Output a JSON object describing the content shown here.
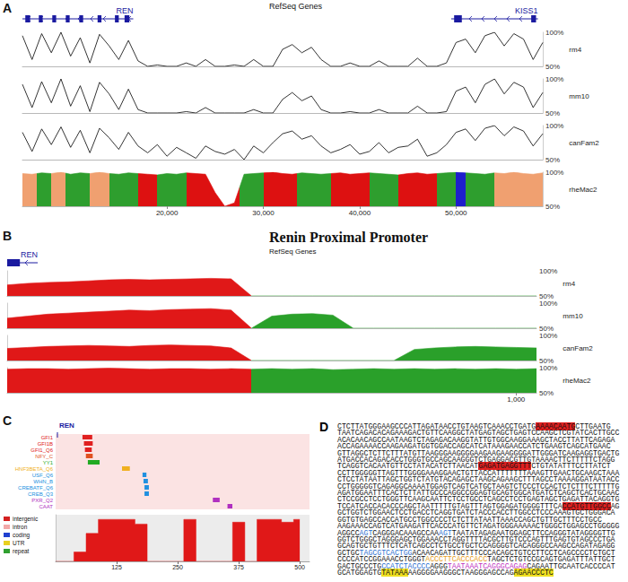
{
  "chart_data": [
    {
      "label": "A",
      "type": "line",
      "header": "RefSeq Genes",
      "genes": [
        {
          "name": "REN",
          "from": 5000,
          "to": 16500,
          "exons": [
            [
              5300,
              5800
            ],
            [
              6700,
              7100
            ],
            [
              8100,
              8500
            ],
            [
              9500,
              9900
            ],
            [
              10900,
              11300
            ],
            [
              12800,
              13200
            ],
            [
              14600,
              15000
            ],
            [
              15600,
              16100
            ]
          ]
        },
        {
          "name": "KISS1",
          "from": 49500,
          "to": 58500,
          "exons": [
            [
              49800,
              50600
            ],
            [
              57800,
              58300
            ]
          ]
        }
      ],
      "x": [
        5000,
        6000,
        7000,
        8000,
        9000,
        10000,
        11000,
        12000,
        13000,
        14000,
        15000,
        16000,
        17000,
        18000,
        19000,
        20000,
        21000,
        22000,
        23000,
        24000,
        25000,
        26000,
        27000,
        28000,
        29000,
        30000,
        31000,
        32000,
        33000,
        34000,
        35000,
        36000,
        37000,
        38000,
        39000,
        40000,
        41000,
        42000,
        43000,
        44000,
        45000,
        46000,
        47000,
        48000,
        49000,
        50000,
        51000,
        52000,
        53000,
        54000,
        55000,
        56000,
        57000,
        58000,
        59000
      ],
      "xlim": [
        5000,
        59000
      ],
      "xticks": [
        {
          "value": 20000,
          "label": "20,000"
        },
        {
          "value": 30000,
          "label": "30,000"
        },
        {
          "value": 40000,
          "label": "40,000"
        },
        {
          "value": 50000,
          "label": "50,000"
        }
      ],
      "ylim": [
        50,
        100
      ],
      "yticks": [
        {
          "value": 50,
          "label": "50%"
        },
        {
          "value": 100,
          "label": "100%"
        }
      ],
      "regions": [
        {
          "from": 5000,
          "to": 6500,
          "color": "#f0a070"
        },
        {
          "from": 6500,
          "to": 8000,
          "color": "#2e9e2e"
        },
        {
          "from": 8000,
          "to": 9500,
          "color": "#f0a070"
        },
        {
          "from": 9500,
          "to": 12000,
          "color": "#2e9e2e"
        },
        {
          "from": 12000,
          "to": 14000,
          "color": "#f0a070"
        },
        {
          "from": 14000,
          "to": 17000,
          "color": "#2e9e2e"
        },
        {
          "from": 17000,
          "to": 19000,
          "color": "#dd1111"
        },
        {
          "from": 19000,
          "to": 22000,
          "color": "#2e9e2e"
        },
        {
          "from": 22000,
          "to": 27500,
          "color": "#dd1111"
        },
        {
          "from": 27500,
          "to": 30000,
          "color": "#2e9e2e"
        },
        {
          "from": 30000,
          "to": 33500,
          "color": "#dd1111"
        },
        {
          "from": 33500,
          "to": 37000,
          "color": "#2e9e2e"
        },
        {
          "from": 37000,
          "to": 41000,
          "color": "#dd1111"
        },
        {
          "from": 41000,
          "to": 44000,
          "color": "#2e9e2e"
        },
        {
          "from": 44000,
          "to": 48000,
          "color": "#dd1111"
        },
        {
          "from": 48000,
          "to": 50000,
          "color": "#2e9e2e"
        },
        {
          "from": 50000,
          "to": 51000,
          "color": "#1e1ecc"
        },
        {
          "from": 51000,
          "to": 54000,
          "color": "#2e9e2e"
        },
        {
          "from": 54000,
          "to": 59000,
          "color": "#f0a070"
        }
      ],
      "series": [
        {
          "name": "rm4",
          "type": "line",
          "color": "#000000",
          "values": [
            95,
            60,
            98,
            70,
            100,
            65,
            92,
            55,
            97,
            80,
            60,
            88,
            58,
            50,
            52,
            50,
            50,
            55,
            50,
            60,
            50,
            50,
            52,
            50,
            60,
            50,
            50,
            75,
            82,
            70,
            78,
            60,
            50,
            50,
            55,
            50,
            50,
            58,
            50,
            50,
            50,
            62,
            50,
            50,
            55,
            85,
            90,
            70,
            95,
            100,
            80,
            98,
            90,
            60,
            85
          ]
        },
        {
          "name": "mm10",
          "type": "line",
          "color": "#000000",
          "values": [
            92,
            58,
            96,
            65,
            100,
            60,
            90,
            52,
            95,
            78,
            55,
            85,
            55,
            50,
            50,
            50,
            50,
            52,
            50,
            58,
            50,
            50,
            50,
            50,
            55,
            50,
            50,
            70,
            80,
            68,
            75,
            55,
            50,
            50,
            52,
            50,
            50,
            55,
            50,
            50,
            50,
            60,
            50,
            50,
            52,
            82,
            88,
            65,
            92,
            100,
            78,
            95,
            88,
            58,
            80
          ]
        },
        {
          "name": "canFam2",
          "type": "line",
          "color": "#000000",
          "values": [
            90,
            62,
            95,
            72,
            98,
            68,
            93,
            60,
            96,
            82,
            65,
            90,
            70,
            60,
            72,
            55,
            68,
            60,
            52,
            70,
            62,
            58,
            65,
            50,
            70,
            60,
            75,
            88,
            92,
            80,
            85,
            70,
            60,
            65,
            72,
            58,
            62,
            75,
            60,
            68,
            70,
            80,
            55,
            60,
            72,
            90,
            95,
            78,
            96,
            100,
            85,
            98,
            92,
            70,
            88
          ]
        },
        {
          "name": "rheMac2",
          "type": "area",
          "values": [
            98,
            97,
            99,
            98,
            100,
            97,
            99,
            98,
            100,
            98,
            97,
            99,
            98,
            97,
            96,
            98,
            97,
            99,
            98,
            97,
            70,
            50,
            55,
            97,
            98,
            99,
            100,
            98,
            97,
            99,
            98,
            97,
            98,
            99,
            97,
            98,
            99,
            98,
            97,
            96,
            98,
            99,
            97,
            98,
            99,
            100,
            99,
            98,
            97,
            99,
            98,
            100,
            98,
            97,
            99
          ]
        }
      ]
    },
    {
      "label": "B",
      "type": "line",
      "title": "Renin Proximal Promoter",
      "header": "RefSeq Genes",
      "genes": [
        {
          "name": "REN",
          "from": 0,
          "to": 60,
          "exons": [
            [
              0,
              25
            ]
          ]
        }
      ],
      "x": [
        0,
        40,
        80,
        120,
        160,
        200,
        240,
        280,
        320,
        360,
        400,
        440,
        480,
        520,
        560,
        600,
        640,
        680,
        720,
        760,
        800,
        840,
        880,
        920,
        960,
        1000,
        1040
      ],
      "xlim": [
        0,
        1040
      ],
      "xticks": [
        {
          "value": 1000,
          "label": "1,000"
        }
      ],
      "ylim": [
        50,
        100
      ],
      "yticks": [
        {
          "value": 50,
          "label": "50%"
        },
        {
          "value": 100,
          "label": "100%"
        }
      ],
      "regions": [
        {
          "from": 0,
          "to": 480,
          "color": "#e01818"
        },
        {
          "from": 480,
          "to": 1040,
          "color": "#2aa02a"
        }
      ],
      "series": [
        {
          "name": "rm4",
          "type": "area",
          "values": [
            72,
            75,
            77,
            78,
            80,
            82,
            83,
            82,
            83,
            84,
            85,
            84,
            50,
            50,
            50,
            50,
            50,
            50,
            50,
            50,
            50,
            50,
            50,
            50,
            50,
            50,
            50
          ]
        },
        {
          "name": "mm10",
          "type": "area",
          "values": [
            70,
            74,
            78,
            80,
            82,
            84,
            86,
            85,
            87,
            88,
            89,
            86,
            50,
            74,
            78,
            79,
            76,
            50,
            50,
            50,
            50,
            50,
            50,
            50,
            50,
            50,
            50
          ]
        },
        {
          "name": "canFam2",
          "type": "area",
          "values": [
            74,
            76,
            78,
            79,
            80,
            79,
            78,
            80,
            81,
            80,
            79,
            75,
            50,
            50,
            50,
            50,
            50,
            50,
            50,
            50,
            72,
            75,
            77,
            78,
            77,
            76,
            75
          ]
        },
        {
          "name": "rheMac2",
          "type": "area",
          "values": [
            97,
            98,
            98,
            97,
            98,
            99,
            98,
            97,
            98,
            98,
            97,
            98,
            97,
            98,
            97,
            98,
            96,
            97,
            98,
            97,
            98,
            97,
            98,
            97,
            98,
            97,
            98
          ]
        }
      ]
    },
    {
      "label": "C",
      "type": "bar",
      "orientation": "horizontal",
      "gene": "REN",
      "categories": [
        "GFI1",
        "GFI1B",
        "GFI1_Q6",
        "NFY_C",
        "YY1",
        "HNF3BETA_Q6",
        "USF_Q6",
        "WHN_B",
        "CREBATF_Q6",
        "CREB_Q3",
        "PXR_Q2",
        "CAAT"
      ],
      "colors": [
        "#e02020",
        "#e02020",
        "#e02020",
        "#e05020",
        "#22aa22",
        "#f0b020",
        "#2090e0",
        "#2090e0",
        "#2090e0",
        "#2090e0",
        "#b030c0",
        "#b030c0"
      ],
      "sites": [
        [
          55,
          75
        ],
        [
          58,
          76
        ],
        [
          60,
          74
        ],
        [
          62,
          76
        ],
        [
          66,
          90
        ],
        [
          136,
          152
        ],
        [
          178,
          186
        ],
        [
          180,
          189
        ],
        [
          182,
          191
        ],
        [
          182,
          191
        ],
        [
          322,
          336
        ],
        [
          352,
          362
        ]
      ],
      "xlim": [
        0,
        520
      ],
      "xticks": [
        125,
        250,
        375,
        500
      ],
      "legend_items": [
        {
          "name": "intergenic",
          "color": "#d42020"
        },
        {
          "name": "intron",
          "color": "#f2a8a8"
        },
        {
          "name": "coding",
          "color": "#2040d0"
        },
        {
          "name": "UTR",
          "color": "#e8d020"
        },
        {
          "name": "repeat",
          "color": "#30a030"
        }
      ],
      "conservation": {
        "x": [
          0,
          25,
          50,
          75,
          100,
          125,
          150,
          175,
          200,
          225,
          250,
          275,
          300,
          325,
          350,
          375,
          400,
          425,
          450,
          475,
          500
        ],
        "values": [
          50,
          50,
          60,
          80,
          95,
          95,
          95,
          90,
          50,
          50,
          50,
          95,
          50,
          50,
          50,
          92,
          50,
          95,
          95,
          92,
          95
        ],
        "ylim": [
          50,
          100
        ],
        "color": "#e01818",
        "tick_labels": "x"
      }
    }
  ],
  "document": {
    "label": "D",
    "lines": [
      [
        "CTCTTATGGGAAGCCCATTAGATAACCTGTAAGTCAAACCTGATG",
        {
          "text": "AAAACAATG",
          "highlight": "#e02020"
        },
        "CTTGAATG"
      ],
      [
        "TAATCAGACACAGAAAGACTGTTCAAGGCTATGAGTAGCTGAGTCCAAGCTCGTATCACTTGCC"
      ],
      [
        "ACACAACAGCCAATAAGTCTAGAGACAAGGTATTGTGGCAAGGAAAGCTACCTTATTCAGAGA"
      ],
      [
        "ACCAGAAAACCAAGAAGATGGTGGACCAGCATCATAAAGAACCATCTGAAGTCAGCATGAAC"
      ],
      [
        "GTTAGGCTCTTCTTTATGTTAAGGGAAGGGGAAGAAGAAGGGGATTGGGATCAAGAGGTGACTG"
      ],
      [
        "ATGACCACAGACACCTGGGTGCCAGCAAGGGTCTGAGGACGTTGTAAAACTTCTTTTTCTAGG"
      ],
      [
        "TCAGGTCACAATGTTCCTATACATCTTAACAT",
        {
          "text": "GAGATGAGGTTT",
          "highlight": "#e02020"
        },
        "CTGTATATTTCCTTATCT"
      ],
      [
        "CCTTGGGGGTTAGTTTGGGGAAAGGAACTGTTACCATTTTTTTAAAGTTGAACTGCAAGCTAAA"
      ],
      [
        "CTCCTATAATTAGCTGGTCTATGTACAGAGCTAAGCAGAAGCTTTAGCCTAAAAGGATAATACC"
      ],
      [
        "CCTGGGGGTCAGAGGCAAAATGGAGTCAGTCATGCTAAGTCTCCCTCCACTCTCTTTCTTTTTG"
      ],
      [
        "AGATGGAATTTCACTCTTATTGCCCAGGCCGGAGTGCAGTGGCATGATCTCAGCTCACTGCAAC"
      ],
      [
        "CTCCGCCTCCTGGGTTCAAGCAATTCTCCTGCCTCAGCCTCCTGAGTAGCTGAGATTACAGGTG"
      ],
      [
        "TCCATCACCACACCCAGCTAATTTTTGTAGTTTAGTGGAGATGGGGTTTCA",
        {
          "text": "CCATGTTGGCC",
          "highlight": "#e02020"
        },
        "AG"
      ],
      [
        "GCTGGTCTGGAACTCCTGACCTCAGGTGATCTACCCACCTTGGCCTCCCAAAGTGCTGGGACA"
      ],
      [
        "GGTGTGAGCCACCATGCCTGGCCCCTCTCTTATAATTAAACCAGCTGTTGCTTTCCTGCC"
      ],
      [
        "AAGAAACCAGTCATGAAGATTCACCCATGTTCTAGATGGGAAAAACTGGGCTGGAGCCTGGGGG"
      ],
      [
        "AGGCC",
        {
          "text": "AGT",
          "color": "#2a70d0"
        },
        "CAGGGACAAAGCCAA",
        {
          "text": "AGT",
          "color": "#2a70d0"
        },
        "TAATATAGAGAATGGAGCTTCCAGGGTATAGGGGTTG"
      ],
      [
        "GGTCTGGGCTAGGGAGCTGGAAACCTAGGTTTTACGCTTGTCCCAGTTTGAGTGTAGCCCTGA"
      ],
      [
        "GCAGTGCTGTTTCTCATCAGCCTCTGCCTGCTCCAGGGGTCACAGGGCCAAGCCAGATAGAGG"
      ],
      [
        "GCTGC",
        {
          "text": "TAGCGTCACTGG",
          "color": "#2a70d0"
        },
        "ACAACAGATTGCTTTCCCACAGCTGTCCTTCCTCAGCCCCTCTGCT"
      ],
      [
        "CCCCATCCGGAAACCTGGGT",
        {
          "text": "ACCCTTCACCCACC",
          "color": "#e8a020"
        },
        "TAGCTCTGTCCGCAGTGAGATTTATTGCT"
      ],
      [
        "GACTGCCCTG",
        {
          "text": "CCATCTACCCC",
          "color": "#2a70d0"
        },
        "AGGG",
        {
          "text": "TAATAAATCAGGGCAGAG",
          "color": "#c030c0"
        },
        "CAGAATTGCAATCACCCCAT"
      ],
      [
        "GCATGGAGTG",
        {
          "text": "TATAAA",
          "highlight": "#f0e020"
        },
        "AAGGGGAAGGGCTAAGGGAGCCAG",
        {
          "text": "AGAACCCTC",
          "highlight": "#f0e020"
        }
      ]
    ]
  }
}
